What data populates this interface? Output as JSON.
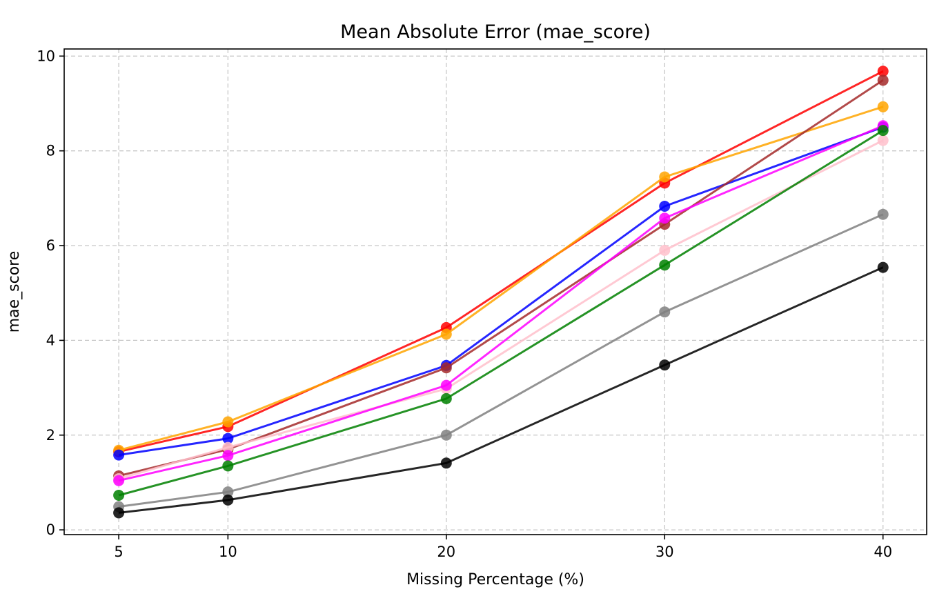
{
  "chart_data": {
    "type": "line",
    "title": "Mean Absolute Error (mae_score)",
    "xlabel": "Missing Percentage (%)",
    "ylabel": "mae_score",
    "x": [
      5,
      10,
      20,
      30,
      40
    ],
    "xticks": [
      5,
      10,
      20,
      30,
      40
    ],
    "yticks": [
      0,
      2,
      4,
      6,
      8,
      10
    ],
    "xlim": [
      2.5,
      42
    ],
    "ylim": [
      -0.1,
      10.15
    ],
    "grid": true,
    "marker": "circle",
    "series": [
      {
        "color": "#ff0000",
        "values": [
          1.65,
          2.18,
          4.27,
          7.32,
          9.68
        ]
      },
      {
        "color": "#ffa500",
        "values": [
          1.68,
          2.28,
          4.13,
          7.45,
          8.93
        ]
      },
      {
        "color": "#0000ff",
        "values": [
          1.58,
          1.93,
          3.47,
          6.83,
          8.5
        ]
      },
      {
        "color": "#a52a2a",
        "values": [
          1.14,
          1.7,
          3.42,
          6.45,
          9.49
        ]
      },
      {
        "color": "#ffc0cb",
        "values": [
          1.08,
          1.74,
          2.98,
          5.9,
          8.22
        ]
      },
      {
        "color": "#ff00ff",
        "values": [
          1.04,
          1.57,
          3.05,
          6.58,
          8.53
        ]
      },
      {
        "color": "#008000",
        "values": [
          0.73,
          1.35,
          2.77,
          5.59,
          8.43
        ]
      },
      {
        "color": "#808080",
        "values": [
          0.49,
          0.8,
          2.0,
          4.6,
          6.66
        ]
      },
      {
        "color": "#000000",
        "values": [
          0.36,
          0.63,
          1.41,
          3.48,
          5.54
        ]
      }
    ]
  }
}
